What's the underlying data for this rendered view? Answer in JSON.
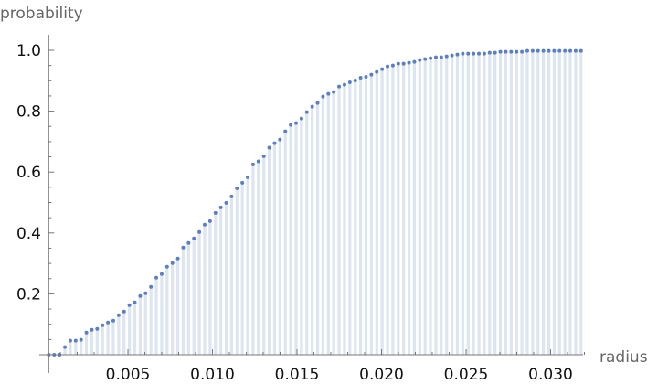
{
  "chart_data": {
    "type": "scatter",
    "style": "points with filling to axis",
    "xlabel": "radius",
    "ylabel": "probability",
    "xlim": [
      0,
      0.0325
    ],
    "ylim": [
      0,
      1.0
    ],
    "x_start": 0.000318,
    "x_step": 0.000318,
    "x_ticks": [
      0.005,
      0.01,
      0.015,
      0.02,
      0.025,
      0.03
    ],
    "x_tick_labels": [
      "0.005",
      "0.010",
      "0.015",
      "0.020",
      "0.025",
      "0.030"
    ],
    "y_ticks": [
      0.2,
      0.4,
      0.6,
      0.8,
      1.0
    ],
    "y_tick_labels": [
      "0.2",
      "0.4",
      "0.6",
      "0.8",
      "1.0"
    ],
    "grid": false,
    "point_color": "#5b7fbf",
    "fill_color": "#dde5f0",
    "values": [
      0,
      0,
      0,
      0.025,
      0.046,
      0.046,
      0.049,
      0.073,
      0.082,
      0.085,
      0.097,
      0.106,
      0.112,
      0.13,
      0.142,
      0.163,
      0.172,
      0.193,
      0.202,
      0.223,
      0.253,
      0.265,
      0.289,
      0.301,
      0.316,
      0.352,
      0.367,
      0.382,
      0.403,
      0.427,
      0.439,
      0.466,
      0.484,
      0.499,
      0.52,
      0.547,
      0.565,
      0.583,
      0.625,
      0.635,
      0.652,
      0.68,
      0.695,
      0.707,
      0.734,
      0.755,
      0.761,
      0.776,
      0.797,
      0.815,
      0.827,
      0.848,
      0.857,
      0.863,
      0.881,
      0.887,
      0.895,
      0.901,
      0.91,
      0.913,
      0.92,
      0.929,
      0.938,
      0.947,
      0.95,
      0.956,
      0.956,
      0.959,
      0.962,
      0.968,
      0.971,
      0.974,
      0.977,
      0.977,
      0.98,
      0.983,
      0.986,
      0.989,
      0.989,
      0.989,
      0.989,
      0.989,
      0.992,
      0.992,
      0.995,
      0.995,
      0.995,
      0.995,
      0.995,
      0.998,
      0.998,
      0.998,
      0.998,
      0.998,
      0.998,
      0.998,
      0.998,
      0.998,
      0.998,
      0.998
    ]
  }
}
